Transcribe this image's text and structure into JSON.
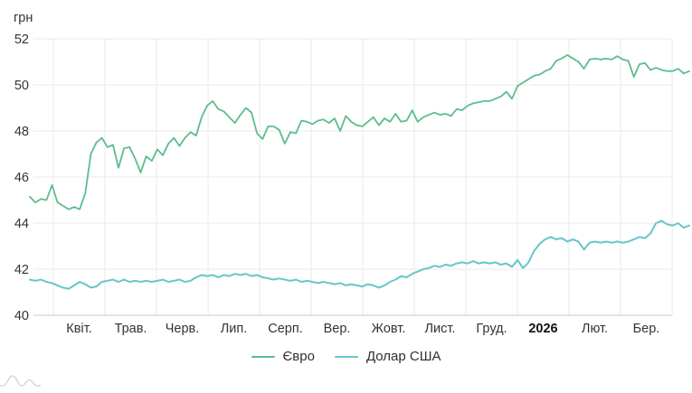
{
  "unit_label": "грн",
  "legend": [
    {
      "label": "Євро",
      "color": "#5dbd8d"
    },
    {
      "label": "Долар США",
      "color": "#66c6c9"
    }
  ],
  "colors": {
    "grid": "#e9e9e9",
    "axis": "#c9c9c9",
    "tick_text": "#333333",
    "bold_tick_text": "#111111",
    "watermark": "#d7d7d7"
  },
  "chart_data": {
    "type": "line",
    "title": "",
    "xlabel": "",
    "ylabel": "грн",
    "ylim": [
      40,
      52
    ],
    "grid": true,
    "legend_position": "bottom",
    "y_ticks": [
      52,
      50,
      48,
      46,
      44,
      42,
      40
    ],
    "x_tick_labels": [
      "Квіт.",
      "Трав.",
      "Черв.",
      "Лип.",
      "Серп.",
      "Вер.",
      "Жовт.",
      "Лист.",
      "Груд.",
      "2026",
      "Лют.",
      "Бер."
    ],
    "bold_x_tick": "2026",
    "series": [
      {
        "name": "Євро",
        "color": "#5dbd8d",
        "values": [
          45.15,
          44.9,
          45.05,
          45.0,
          45.65,
          44.9,
          44.75,
          44.6,
          44.7,
          44.6,
          45.3,
          47.0,
          47.5,
          47.7,
          47.3,
          47.4,
          46.4,
          47.25,
          47.3,
          46.8,
          46.2,
          46.9,
          46.7,
          47.2,
          46.95,
          47.45,
          47.7,
          47.35,
          47.7,
          47.95,
          47.8,
          48.6,
          49.1,
          49.3,
          48.95,
          48.85,
          48.6,
          48.35,
          48.7,
          49.0,
          48.8,
          47.9,
          47.65,
          48.2,
          48.2,
          48.05,
          47.45,
          47.95,
          47.9,
          48.45,
          48.4,
          48.3,
          48.45,
          48.5,
          48.35,
          48.55,
          48.0,
          48.65,
          48.4,
          48.25,
          48.2,
          48.4,
          48.6,
          48.25,
          48.55,
          48.4,
          48.75,
          48.4,
          48.45,
          48.9,
          48.4,
          48.6,
          48.7,
          48.8,
          48.7,
          48.75,
          48.65,
          48.95,
          48.9,
          49.1,
          49.2,
          49.25,
          49.3,
          49.3,
          49.4,
          49.5,
          49.7,
          49.4,
          49.95,
          50.1,
          50.25,
          50.4,
          50.45,
          50.6,
          50.7,
          51.05,
          51.15,
          51.3,
          51.15,
          51.0,
          50.7,
          51.1,
          51.15,
          51.1,
          51.15,
          51.1,
          51.25,
          51.1,
          51.05,
          50.35,
          50.9,
          50.95,
          50.65,
          50.75,
          50.65,
          50.6,
          50.6,
          50.7,
          50.5,
          50.6
        ]
      },
      {
        "name": "Долар США",
        "color": "#66c6c9",
        "values": [
          41.55,
          41.5,
          41.55,
          41.45,
          41.4,
          41.3,
          41.2,
          41.15,
          41.3,
          41.45,
          41.35,
          41.2,
          41.25,
          41.45,
          41.5,
          41.55,
          41.45,
          41.55,
          41.45,
          41.5,
          41.45,
          41.5,
          41.45,
          41.5,
          41.55,
          41.45,
          41.5,
          41.55,
          41.45,
          41.5,
          41.65,
          41.75,
          41.7,
          41.75,
          41.65,
          41.75,
          41.7,
          41.8,
          41.75,
          41.8,
          41.7,
          41.75,
          41.65,
          41.6,
          41.55,
          41.6,
          41.55,
          41.5,
          41.55,
          41.45,
          41.5,
          41.45,
          41.4,
          41.45,
          41.4,
          41.35,
          41.4,
          41.3,
          41.35,
          41.3,
          41.25,
          41.35,
          41.3,
          41.2,
          41.3,
          41.45,
          41.55,
          41.7,
          41.65,
          41.8,
          41.9,
          42.0,
          42.05,
          42.15,
          42.1,
          42.2,
          42.15,
          42.25,
          42.3,
          42.25,
          42.35,
          42.25,
          42.3,
          42.25,
          42.3,
          42.2,
          42.25,
          42.1,
          42.4,
          42.05,
          42.3,
          42.8,
          43.1,
          43.3,
          43.4,
          43.3,
          43.35,
          43.2,
          43.3,
          43.2,
          42.85,
          43.15,
          43.2,
          43.15,
          43.2,
          43.15,
          43.2,
          43.15,
          43.2,
          43.3,
          43.4,
          43.35,
          43.55,
          44.0,
          44.1,
          43.95,
          43.9,
          44.0,
          43.8,
          43.9
        ]
      }
    ]
  }
}
